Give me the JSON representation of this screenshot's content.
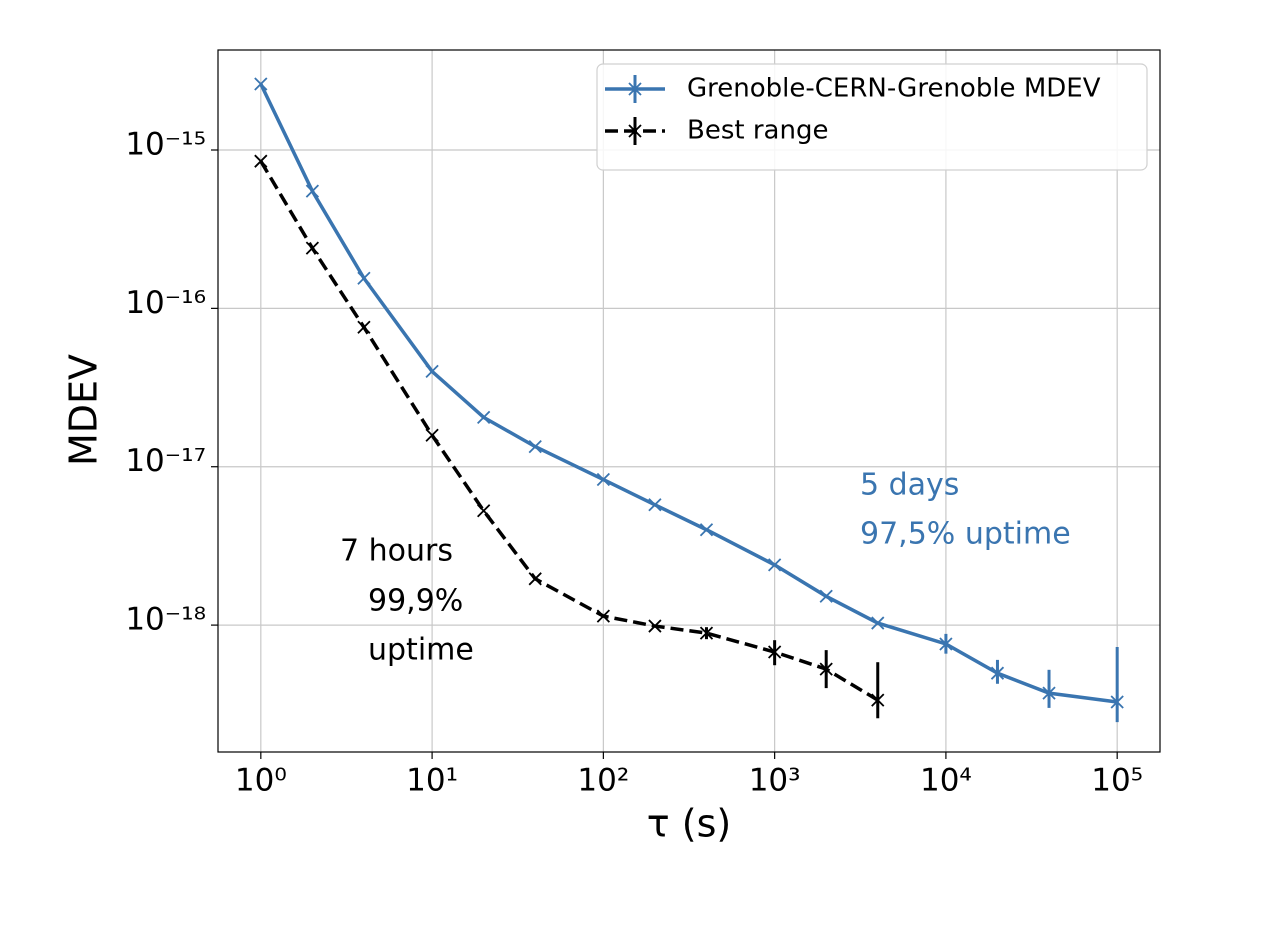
{
  "chart_data": {
    "type": "line",
    "xscale": "log",
    "yscale": "log",
    "grid": true,
    "legend": "upper right",
    "xlabel": "τ (s)",
    "ylabel": "MDEV",
    "xlim": [
      0.5623,
      177828
    ],
    "ylim": [
      1.58e-19,
      4.28e-15
    ],
    "xticks": [
      {
        "value": 1,
        "label": "10⁰"
      },
      {
        "value": 10,
        "label": "10¹"
      },
      {
        "value": 100,
        "label": "10²"
      },
      {
        "value": 1000,
        "label": "10³"
      },
      {
        "value": 10000,
        "label": "10⁴"
      },
      {
        "value": 100000,
        "label": "10⁵"
      }
    ],
    "yticks": [
      {
        "value": 1e-18,
        "label": "10⁻¹⁸"
      },
      {
        "value": 1e-17,
        "label": "10⁻¹⁷"
      },
      {
        "value": 1e-16,
        "label": "10⁻¹⁶"
      },
      {
        "value": 1e-15,
        "label": "10⁻¹⁵"
      }
    ],
    "series": [
      {
        "name": "Grenoble-CERN-Grenoble MDEV",
        "color": "#3a75b0",
        "linestyle": "solid",
        "x": [
          1,
          2,
          4,
          10,
          20,
          40,
          100,
          200,
          400,
          1000,
          2000,
          4000,
          10000,
          20000,
          40000,
          100000
        ],
        "values": [
          2.61e-15,
          5.5e-16,
          1.55e-16,
          4e-17,
          2.05e-17,
          1.34e-17,
          8.3e-18,
          5.75e-18,
          4e-18,
          2.4e-18,
          1.52e-18,
          1.03e-18,
          7.6e-19,
          4.97e-19,
          3.72e-19,
          3.27e-19
        ],
        "error_low": [
          null,
          null,
          null,
          null,
          null,
          null,
          null,
          null,
          null,
          null,
          null,
          null,
          1e-19,
          7.1e-20,
          7.2e-20,
          8.3e-20
        ],
        "error_high": [
          null,
          null,
          null,
          null,
          null,
          null,
          null,
          null,
          null,
          null,
          null,
          null,
          1.2e-19,
          1.06e-19,
          1.5e-19,
          4e-19
        ]
      },
      {
        "name": "Best range",
        "color": "#000000",
        "linestyle": "dashed",
        "x": [
          1,
          2,
          4,
          10,
          20,
          40,
          100,
          200,
          400,
          1000,
          2000,
          4000
        ],
        "values": [
          8.5e-16,
          2.4e-16,
          7.6e-17,
          1.58e-17,
          5.27e-18,
          1.96e-18,
          1.14e-18,
          9.86e-19,
          8.9e-19,
          6.76e-19,
          5.27e-19,
          3.36e-19
        ],
        "error_low": [
          null,
          null,
          null,
          null,
          null,
          null,
          null,
          null,
          7.5e-20,
          1.18e-19,
          1.27e-19,
          7.8e-20
        ],
        "error_high": [
          null,
          null,
          null,
          null,
          null,
          null,
          null,
          null,
          8e-20,
          1.27e-19,
          1.68e-19,
          2.47e-19
        ]
      }
    ],
    "annotations": [
      {
        "text": "7 hours",
        "color": "#000000"
      },
      {
        "text": "99,9%",
        "color": "#000000"
      },
      {
        "text": "uptime",
        "color": "#000000"
      },
      {
        "text": "5 days",
        "color": "#3a75b0"
      },
      {
        "text": "97,5% uptime",
        "color": "#3a75b0"
      }
    ]
  }
}
